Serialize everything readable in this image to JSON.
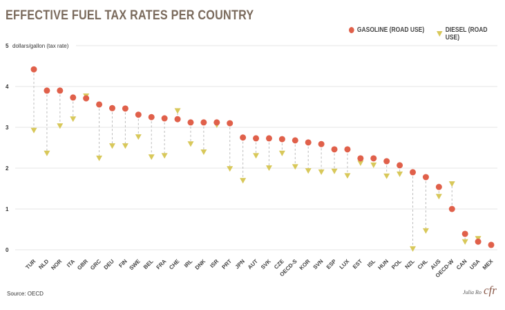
{
  "chart_data": {
    "type": "scatter",
    "title": "EFFECTIVE FUEL TAX RATES PER COUNTRY",
    "ylabel": "dollars/gallon (tax rate)",
    "ylim": [
      0,
      5
    ],
    "yticks": [
      0,
      1,
      2,
      3,
      4,
      5
    ],
    "grid": true,
    "legend_position": "top-right",
    "categories": [
      "TUR",
      "NLD",
      "NOR",
      "ITA",
      "GBR",
      "GRC",
      "DEU",
      "FIN",
      "SWE",
      "BEL",
      "FRA",
      "CHE",
      "IRL",
      "DNK",
      "ISR",
      "PRT",
      "JPN",
      "AUT",
      "SVK",
      "CZE",
      "OECD-S",
      "KOR",
      "SVN",
      "ESP",
      "LUX",
      "EST",
      "ISL",
      "HUN",
      "POL",
      "NZL",
      "CHL",
      "AUS",
      "OECD-W",
      "CAN",
      "USA",
      "MEX"
    ],
    "series": [
      {
        "name": "GASOLINE (ROAD USE)",
        "marker": "circle",
        "color": "#e0604a",
        "values": [
          4.42,
          3.9,
          3.9,
          3.73,
          3.71,
          3.56,
          3.47,
          3.46,
          3.31,
          3.25,
          3.22,
          3.2,
          3.12,
          3.12,
          3.12,
          3.1,
          2.75,
          2.73,
          2.73,
          2.71,
          2.68,
          2.63,
          2.59,
          2.46,
          2.46,
          2.24,
          2.24,
          2.17,
          2.07,
          1.9,
          1.78,
          1.54,
          1.0,
          0.39,
          0.2,
          0.12
        ]
      },
      {
        "name": "DIESEL (ROAD USE)",
        "marker": "triangle-down",
        "color": "#d8c85a",
        "values": [
          2.92,
          2.36,
          3.03,
          3.2,
          3.76,
          2.24,
          2.54,
          2.54,
          2.76,
          2.27,
          2.3,
          3.4,
          2.59,
          2.39,
          3.05,
          1.98,
          1.69,
          2.3,
          2.0,
          2.36,
          2.03,
          1.93,
          1.9,
          1.92,
          1.81,
          2.12,
          2.07,
          1.8,
          1.85,
          0.02,
          0.46,
          1.3,
          1.61,
          0.19,
          0.27,
          null
        ]
      }
    ]
  },
  "source": "Source:  OECD",
  "credit": "Julia Ro",
  "logo": "cfr"
}
